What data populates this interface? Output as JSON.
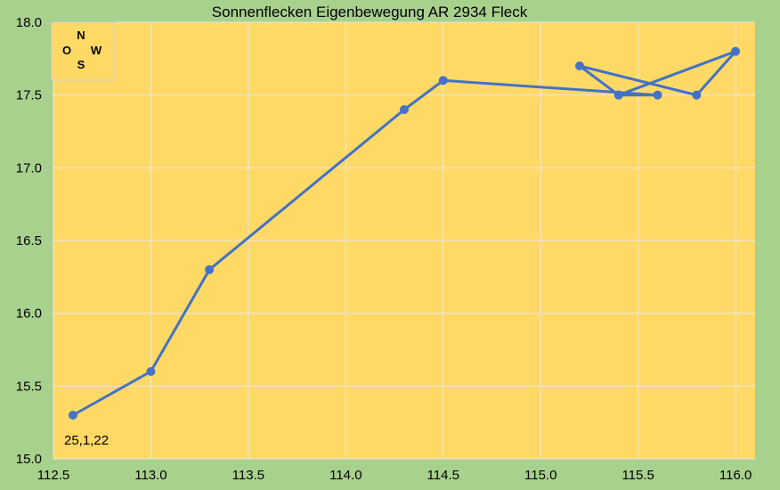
{
  "chart_data": {
    "type": "scatter",
    "title": "Sonnenflecken Eigenbewegung AR 2934 Fleck",
    "xlabel": "",
    "ylabel": "",
    "xlim": [
      112.5,
      116.1
    ],
    "ylim": [
      15.0,
      18.0
    ],
    "x_ticks": [
      "112.5",
      "113.0",
      "113.5",
      "114.0",
      "114.5",
      "115.0",
      "115.5",
      "116.0"
    ],
    "y_ticks": [
      "15.0",
      "15.5",
      "16.0",
      "16.5",
      "17.0",
      "17.5",
      "18.0"
    ],
    "grid": true,
    "lines_connected": true,
    "series": [
      {
        "points": [
          {
            "x": 112.6,
            "y": 15.3
          },
          {
            "x": 113.0,
            "y": 15.6
          },
          {
            "x": 113.3,
            "y": 16.3
          },
          {
            "x": 114.3,
            "y": 17.4
          },
          {
            "x": 114.5,
            "y": 17.6
          },
          {
            "x": 115.6,
            "y": 17.5
          },
          {
            "x": 115.4,
            "y": 17.5
          },
          {
            "x": 116.0,
            "y": 17.8
          },
          {
            "x": 115.8,
            "y": 17.5
          },
          {
            "x": 115.2,
            "y": 17.7
          },
          {
            "x": 115.4,
            "y": 17.5
          }
        ]
      }
    ],
    "annotations": [
      {
        "text": "25,1,22"
      }
    ],
    "compass": {
      "n": "N",
      "s": "S",
      "o": "O",
      "w": "W"
    }
  },
  "colors": {
    "outer_background": "#a9d18e",
    "plot_background": "#ffd966",
    "grid": "#e6e6e6",
    "series": "#4472c4"
  }
}
